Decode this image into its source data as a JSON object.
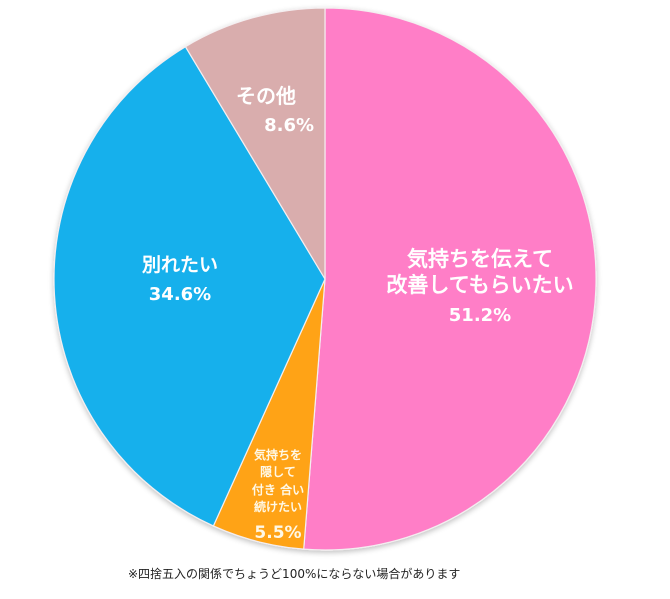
{
  "chart_data": {
    "type": "pie",
    "title": "",
    "start_angle_deg": 0,
    "direction": "clockwise",
    "slices": [
      {
        "label": "気持ちを伝えて改善してもらいたい",
        "label_lines": [
          "気持ちを伝えて",
          "改善してもらいたい"
        ],
        "value": 51.2,
        "value_label": "51.2%",
        "color": "#FF7EC7"
      },
      {
        "label": "気持ちを隠して付き合い続けたい",
        "label_lines": [
          "気持ちを",
          "隠して",
          "付き 合い",
          "続けたい"
        ],
        "value": 5.5,
        "value_label": "5.5%",
        "color": "#FFA318"
      },
      {
        "label": "別れたい",
        "label_lines": [
          "別れたい"
        ],
        "value": 34.6,
        "value_label": "34.6%",
        "color": "#18B0EC"
      },
      {
        "label": "その他",
        "label_lines": [
          "その他"
        ],
        "value": 8.6,
        "value_label": "8.6%",
        "color": "#D9ADAD"
      }
    ],
    "legend": null,
    "annotation": "※四捨五入の関係でちょうど100%にならない場合があります"
  },
  "labels": {
    "pink": {
      "line1": "気持ちを伝えて",
      "line2": "改善してもらいたい",
      "value": "51.2%"
    },
    "orange": {
      "line1": "気持ちを",
      "line2": "隠して",
      "line3": "付き 合い",
      "line4": "続けたい",
      "value": "5.5%"
    },
    "blue": {
      "line1": "別れたい",
      "value": "34.6%"
    },
    "mauve": {
      "line1": "その他",
      "value": "8.6%"
    }
  },
  "note": "※四捨五入の関係でちょうど100%にならない場合があります"
}
